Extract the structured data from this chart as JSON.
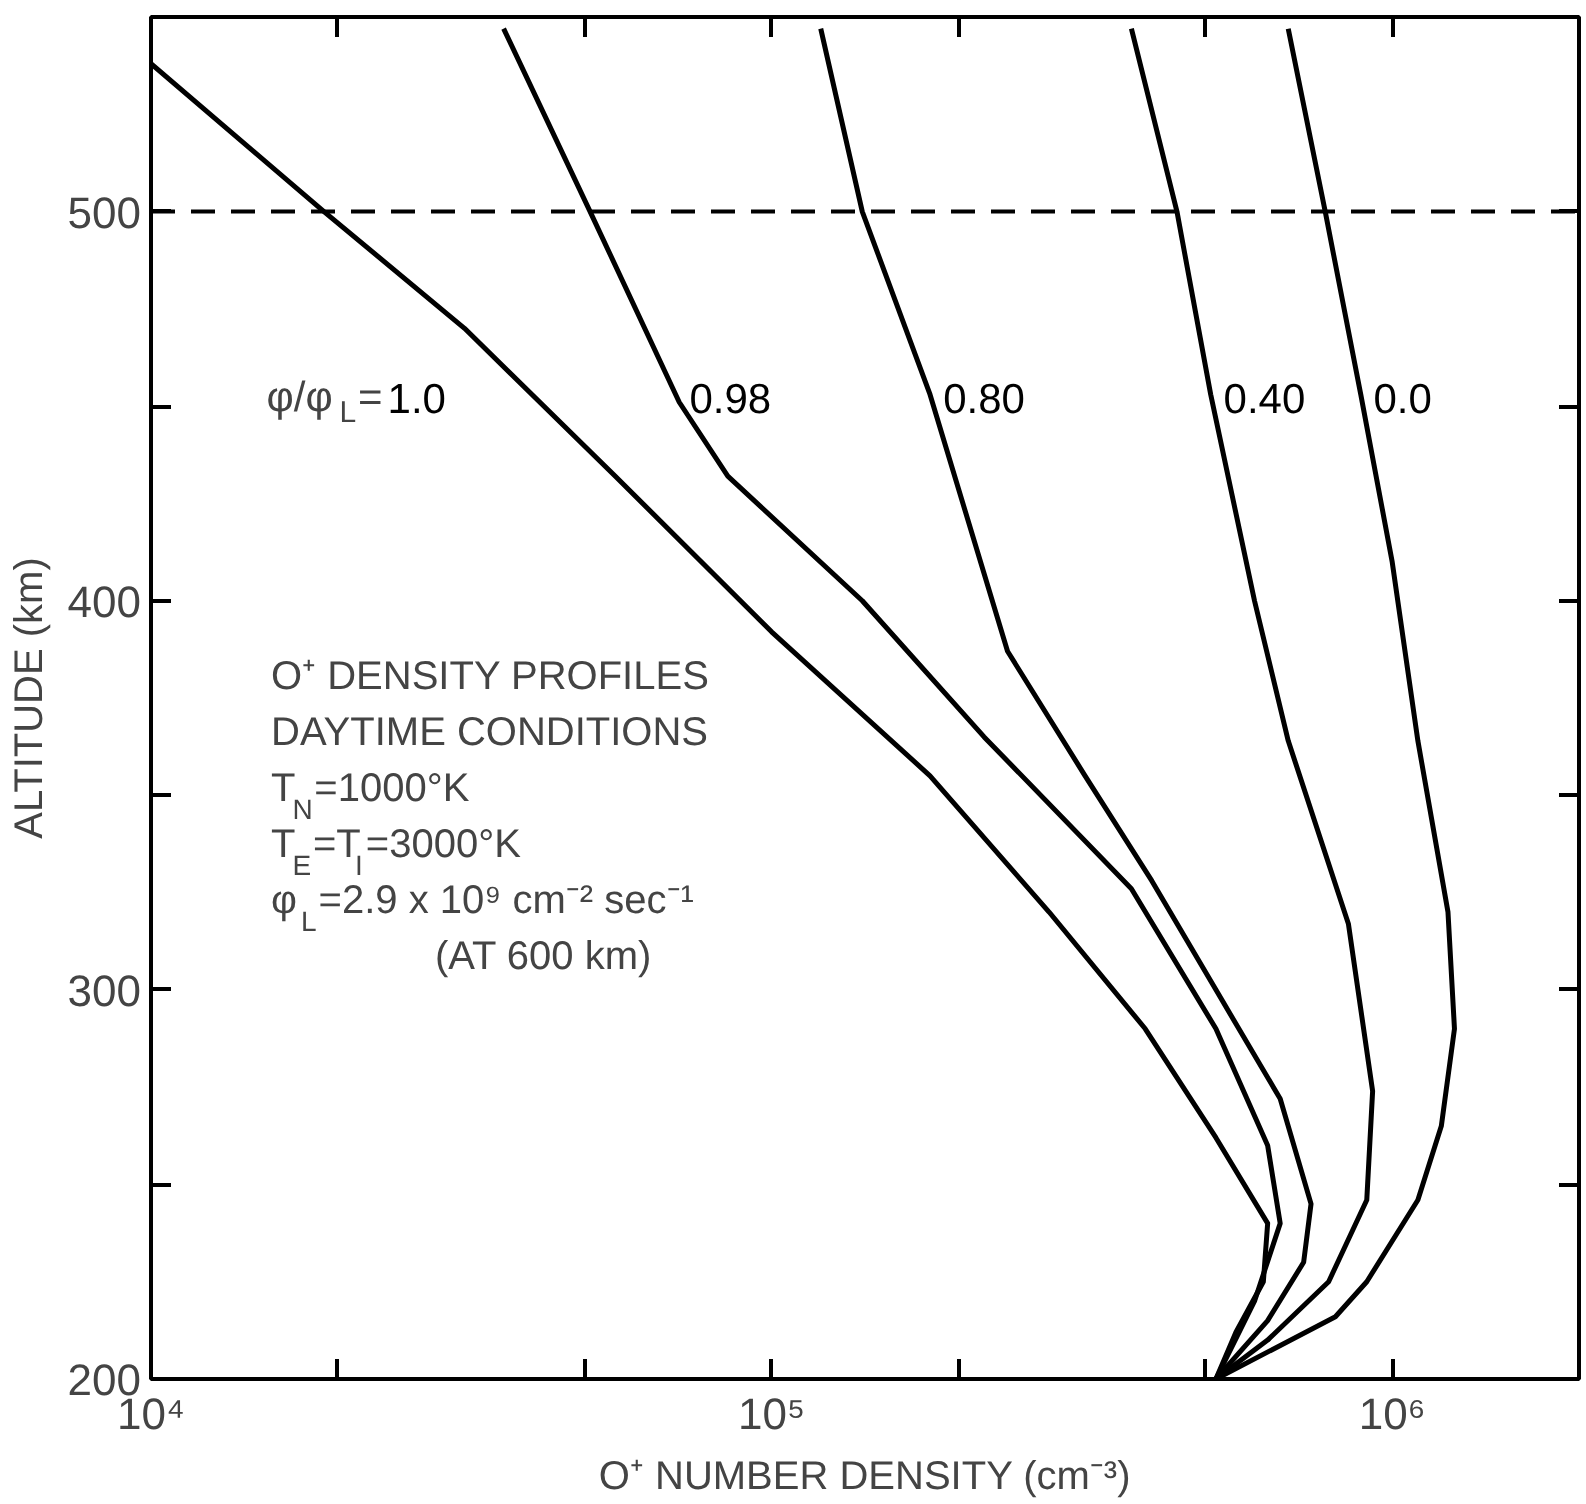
{
  "chart_data": {
    "type": "line",
    "xlabel": "O⁺ NUMBER DENSITY (cm⁻³)",
    "ylabel": "ALTITUDE (km)",
    "log": "x",
    "xlim": [
      10000,
      2000000
    ],
    "ylim": [
      200,
      550
    ],
    "xticks": [
      {
        "value": 10000,
        "label": "10⁴"
      },
      {
        "value": 20000,
        "label": null
      },
      {
        "value": 50000,
        "label": null
      },
      {
        "value": 100000,
        "label": "10⁵"
      },
      {
        "value": 200000,
        "label": null
      },
      {
        "value": 500000,
        "label": null
      },
      {
        "value": 1000000,
        "label": "10⁶"
      }
    ],
    "yticks": [
      200,
      {
        "value": 250,
        "label": null
      },
      300,
      {
        "value": 350,
        "label": null
      },
      400,
      {
        "value": 450,
        "label": null
      },
      500
    ],
    "grid": false,
    "marker": "none",
    "line_style": "solid",
    "series": [
      {
        "name": "1.0",
        "color": "#000000",
        "x": [
          10000,
          19000,
          32000,
          56000,
          100000,
          180000,
          280000,
          400000,
          520000,
          630000,
          620000,
          560000,
          520000
        ],
        "values": [
          538,
          500,
          470,
          432,
          392,
          355,
          320,
          290,
          262,
          240,
          225,
          212,
          200
        ]
      },
      {
        "name": "0.98",
        "color": "#000000",
        "x": [
          37000,
          51000,
          71000,
          85000,
          140000,
          220000,
          380000,
          520000,
          630000,
          660000,
          600000,
          520000
        ],
        "values": [
          547,
          500,
          451,
          432,
          400,
          365,
          326,
          290,
          260,
          240,
          220,
          200
        ]
      },
      {
        "name": "0.80",
        "color": "#000000",
        "x": [
          120000,
          140000,
          180000,
          240000,
          320000,
          410000,
          520000,
          660000,
          740000,
          720000,
          630000,
          520000
        ],
        "values": [
          547,
          500,
          453,
          387,
          355,
          328,
          300,
          272,
          245,
          230,
          215,
          200
        ]
      },
      {
        "name": "0.40",
        "color": "#000000",
        "x": [
          380000,
          450000,
          510000,
          600000,
          680000,
          850000,
          930000,
          910000,
          790000,
          630000,
          520000
        ],
        "values": [
          547,
          500,
          453,
          400,
          364,
          317,
          274,
          246,
          225,
          210,
          200
        ]
      },
      {
        "name": "0.0",
        "color": "#000000",
        "x": [
          680000,
          780000,
          890000,
          1000000,
          1100000,
          1230000,
          1260000,
          1200000,
          1100000,
          910000,
          810000,
          520000
        ],
        "values": [
          547,
          500,
          453,
          410,
          364,
          320,
          290,
          265,
          246,
          225,
          216,
          200
        ]
      }
    ],
    "ref_lines": [
      {
        "axis": "y",
        "value": 500,
        "line_style": "dashed",
        "color": "#000000"
      }
    ],
    "annotations": [
      "φ/φ$_{L}$=",
      "O⁺ DENSITY PROFILES",
      "DAYTIME CONDITIONS",
      "T$_{N}$=1000°K",
      "T$_{E}$=T$_{I}$=3000°K",
      "φ$_{L}$=2.9 x 10⁹ cm⁻² sec⁻¹",
      "(AT 600 km)"
    ]
  }
}
